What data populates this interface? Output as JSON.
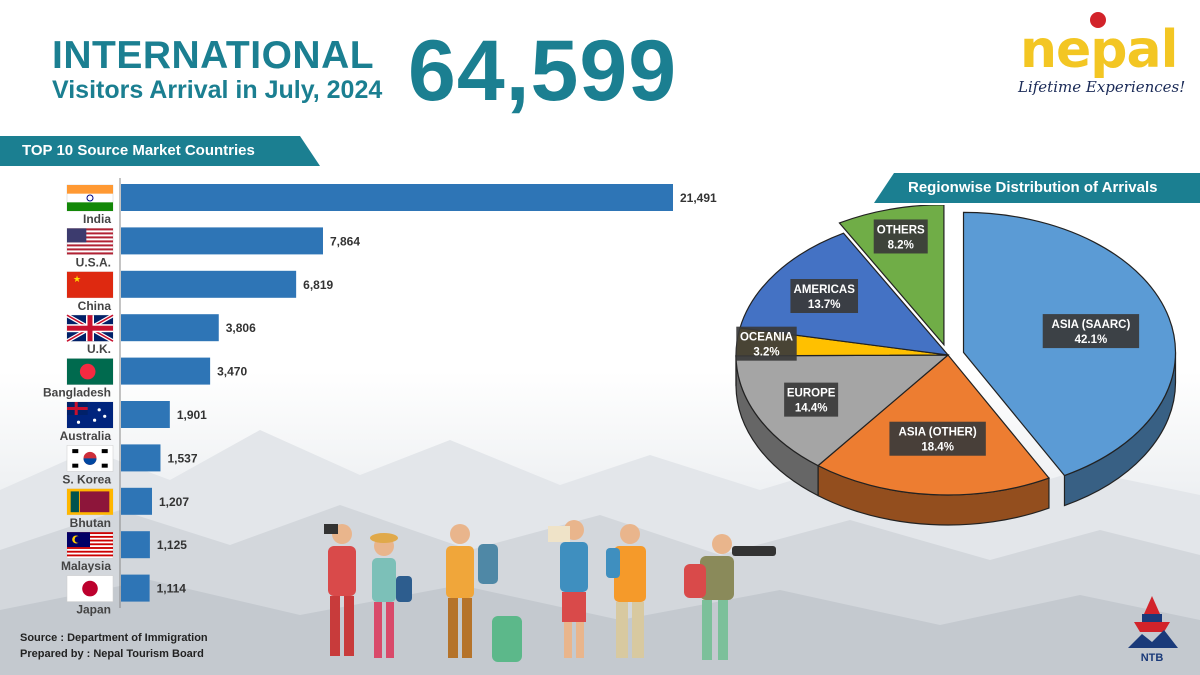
{
  "header": {
    "title_line1": "INTERNATIONAL",
    "title_line2": "Visitors Arrival in July, 2024",
    "total": "64,599"
  },
  "brand": {
    "name": "nepal",
    "tagline": "Lifetime Experiences!",
    "org_mark": "NTB"
  },
  "bar_section_title": "TOP 10 Source Market Countries",
  "pie_section_title": "Regionwise Distribution of Arrivals",
  "footer": {
    "source": "Source : Department of Immigration",
    "prepared": "Prepared by : Nepal Tourism Board"
  },
  "colors": {
    "teal": "#1b7f91",
    "bar": "#2e75b6"
  },
  "chart_data": [
    {
      "type": "bar",
      "orientation": "horizontal",
      "title": "TOP 10 Source Market Countries",
      "categories": [
        "India",
        "U.S.A.",
        "China",
        "U.K.",
        "Bangladesh",
        "Australia",
        "S. Korea",
        "Bhutan",
        "Malaysia",
        "Japan"
      ],
      "labels": [
        "21,491",
        "7,864",
        "6,819",
        "3,806",
        "3,470",
        "1,901",
        "1,537",
        "1,207",
        "1,125",
        "1,114"
      ],
      "values": [
        21491,
        7864,
        6819,
        3806,
        3470,
        1901,
        1537,
        1207,
        1125,
        1114
      ],
      "xlim": [
        0,
        21491
      ],
      "grid": false
    },
    {
      "type": "pie",
      "title": "Regionwise Distribution of Arrivals",
      "slices": [
        {
          "name": "ASIA (SAARC)",
          "label": "42.1%",
          "value": 42.1,
          "color": "#5b9bd5",
          "exploded": true
        },
        {
          "name": "ASIA (OTHER)",
          "label": "18.4%",
          "value": 18.4,
          "color": "#ed7d31",
          "exploded": false
        },
        {
          "name": "EUROPE",
          "label": "14.4%",
          "value": 14.4,
          "color": "#a5a5a5",
          "exploded": false
        },
        {
          "name": "OCEANIA",
          "label": "3.2%",
          "value": 3.2,
          "color": "#ffc000",
          "exploded": false
        },
        {
          "name": "AMERICAS",
          "label": "13.7%",
          "value": 13.7,
          "color": "#4472c4",
          "exploded": false
        },
        {
          "name": "OTHERS",
          "label": "8.2%",
          "value": 8.2,
          "color": "#70ad47",
          "exploded": true
        }
      ]
    }
  ]
}
